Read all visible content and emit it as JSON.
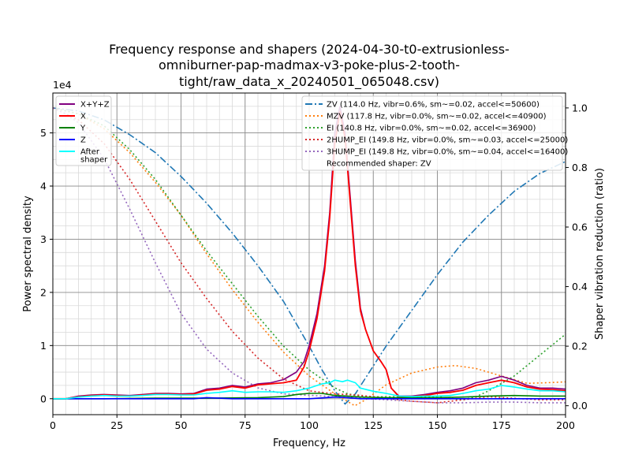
{
  "chart_data": {
    "type": "line",
    "title_lines": [
      "Frequency response and shapers (2024-04-30-t0-extrusionless-",
      "omniburner-pap-madmax-v3-poke-plus-2-tooth-",
      "tight/raw_data_x_20240501_065048.csv)"
    ],
    "xlabel": "Frequency, Hz",
    "ylabel": "Power spectral density",
    "y2label": "Shaper vibration reduction (ratio)",
    "y_offset_text": "1e4",
    "xlim": [
      0,
      200
    ],
    "ylim": [
      -0.3,
      5.75
    ],
    "y2lim": [
      -0.03,
      1.05
    ],
    "x_ticks": [
      0,
      25,
      50,
      75,
      100,
      125,
      150,
      175,
      200
    ],
    "y_ticks": [
      0,
      1,
      2,
      3,
      4,
      5
    ],
    "y2_ticks": [
      0.0,
      0.2,
      0.4,
      0.6,
      0.8,
      1.0
    ],
    "x_tick_labels": [
      "0",
      "25",
      "50",
      "75",
      "100",
      "125",
      "150",
      "175",
      "200"
    ],
    "y_tick_labels": [
      "0",
      "1",
      "2",
      "3",
      "4",
      "5"
    ],
    "y2_tick_labels": [
      "0.0",
      "0.2",
      "0.4",
      "0.6",
      "0.8",
      "1.0"
    ],
    "psd_series": [
      {
        "name": "X+Y+Z",
        "color": "#800080",
        "width": 1.6,
        "points": [
          [
            0,
            0
          ],
          [
            5,
            0
          ],
          [
            10,
            0.05
          ],
          [
            15,
            0.07
          ],
          [
            20,
            0.08
          ],
          [
            25,
            0.07
          ],
          [
            30,
            0.06
          ],
          [
            35,
            0.08
          ],
          [
            40,
            0.1
          ],
          [
            45,
            0.1
          ],
          [
            50,
            0.09
          ],
          [
            55,
            0.1
          ],
          [
            60,
            0.18
          ],
          [
            65,
            0.2
          ],
          [
            70,
            0.25
          ],
          [
            75,
            0.22
          ],
          [
            80,
            0.28
          ],
          [
            85,
            0.3
          ],
          [
            90,
            0.36
          ],
          [
            95,
            0.5
          ],
          [
            98,
            0.7
          ],
          [
            100,
            1.0
          ],
          [
            103,
            1.6
          ],
          [
            106,
            2.5
          ],
          [
            108,
            3.5
          ],
          [
            110,
            5.0
          ],
          [
            112,
            5.5
          ],
          [
            114,
            5.0
          ],
          [
            116,
            3.8
          ],
          [
            118,
            2.6
          ],
          [
            120,
            1.7
          ],
          [
            122,
            1.3
          ],
          [
            125,
            0.9
          ],
          [
            128,
            0.7
          ],
          [
            130,
            0.55
          ],
          [
            132,
            0.2
          ],
          [
            135,
            0.05
          ],
          [
            140,
            0.05
          ],
          [
            145,
            0.08
          ],
          [
            150,
            0.12
          ],
          [
            155,
            0.15
          ],
          [
            160,
            0.2
          ],
          [
            165,
            0.3
          ],
          [
            170,
            0.35
          ],
          [
            175,
            0.42
          ],
          [
            180,
            0.35
          ],
          [
            185,
            0.25
          ],
          [
            190,
            0.2
          ],
          [
            195,
            0.2
          ],
          [
            200,
            0.18
          ]
        ]
      },
      {
        "name": "X",
        "color": "#ff0000",
        "width": 1.8,
        "points": [
          [
            0,
            0
          ],
          [
            5,
            0
          ],
          [
            10,
            0.04
          ],
          [
            15,
            0.06
          ],
          [
            20,
            0.07
          ],
          [
            25,
            0.06
          ],
          [
            30,
            0.05
          ],
          [
            35,
            0.07
          ],
          [
            40,
            0.09
          ],
          [
            45,
            0.09
          ],
          [
            50,
            0.08
          ],
          [
            55,
            0.09
          ],
          [
            60,
            0.16
          ],
          [
            65,
            0.18
          ],
          [
            70,
            0.23
          ],
          [
            75,
            0.2
          ],
          [
            80,
            0.26
          ],
          [
            85,
            0.28
          ],
          [
            90,
            0.3
          ],
          [
            95,
            0.35
          ],
          [
            98,
            0.6
          ],
          [
            100,
            0.9
          ],
          [
            103,
            1.5
          ],
          [
            106,
            2.4
          ],
          [
            108,
            3.4
          ],
          [
            110,
            4.8
          ],
          [
            112,
            5.4
          ],
          [
            114,
            4.9
          ],
          [
            116,
            3.7
          ],
          [
            118,
            2.5
          ],
          [
            120,
            1.65
          ],
          [
            122,
            1.3
          ],
          [
            125,
            0.9
          ],
          [
            128,
            0.7
          ],
          [
            130,
            0.55
          ],
          [
            132,
            0.2
          ],
          [
            135,
            0.04
          ],
          [
            140,
            0.04
          ],
          [
            145,
            0.06
          ],
          [
            150,
            0.1
          ],
          [
            155,
            0.12
          ],
          [
            160,
            0.16
          ],
          [
            165,
            0.25
          ],
          [
            170,
            0.3
          ],
          [
            175,
            0.35
          ],
          [
            180,
            0.3
          ],
          [
            185,
            0.22
          ],
          [
            190,
            0.18
          ],
          [
            195,
            0.17
          ],
          [
            200,
            0.15
          ]
        ]
      },
      {
        "name": "Y",
        "color": "#008000",
        "width": 1.6,
        "points": [
          [
            0,
            0
          ],
          [
            20,
            0
          ],
          [
            40,
            0.01
          ],
          [
            60,
            0.01
          ],
          [
            80,
            0.02
          ],
          [
            90,
            0.04
          ],
          [
            95,
            0.08
          ],
          [
            100,
            0.1
          ],
          [
            105,
            0.1
          ],
          [
            110,
            0.06
          ],
          [
            115,
            0.05
          ],
          [
            120,
            0.03
          ],
          [
            130,
            0.02
          ],
          [
            140,
            0.02
          ],
          [
            150,
            0.02
          ],
          [
            160,
            0.03
          ],
          [
            170,
            0.05
          ],
          [
            180,
            0.06
          ],
          [
            190,
            0.05
          ],
          [
            200,
            0.05
          ]
        ]
      },
      {
        "name": "Z",
        "color": "#0000ff",
        "width": 1.6,
        "points": [
          [
            0,
            0
          ],
          [
            30,
            0
          ],
          [
            55,
            0
          ],
          [
            60,
            0.02
          ],
          [
            65,
            0.01
          ],
          [
            70,
            0.0
          ],
          [
            90,
            0.0
          ],
          [
            100,
            0.0
          ],
          [
            110,
            0.03
          ],
          [
            115,
            0.02
          ],
          [
            120,
            0.0
          ],
          [
            200,
            0.0
          ]
        ]
      },
      {
        "name": "After\nshaper",
        "color": "#00ffff",
        "width": 1.6,
        "points": [
          [
            0,
            0
          ],
          [
            5,
            0
          ],
          [
            10,
            0.03
          ],
          [
            15,
            0.05
          ],
          [
            20,
            0.06
          ],
          [
            25,
            0.05
          ],
          [
            30,
            0.05
          ],
          [
            35,
            0.06
          ],
          [
            40,
            0.08
          ],
          [
            45,
            0.08
          ],
          [
            50,
            0.07
          ],
          [
            55,
            0.07
          ],
          [
            60,
            0.1
          ],
          [
            65,
            0.12
          ],
          [
            70,
            0.15
          ],
          [
            75,
            0.12
          ],
          [
            80,
            0.13
          ],
          [
            85,
            0.13
          ],
          [
            90,
            0.12
          ],
          [
            95,
            0.15
          ],
          [
            100,
            0.2
          ],
          [
            105,
            0.28
          ],
          [
            108,
            0.3
          ],
          [
            110,
            0.35
          ],
          [
            113,
            0.32
          ],
          [
            115,
            0.35
          ],
          [
            118,
            0.3
          ],
          [
            120,
            0.2
          ],
          [
            125,
            0.14
          ],
          [
            130,
            0.1
          ],
          [
            135,
            0.05
          ],
          [
            140,
            0.04
          ],
          [
            145,
            0.05
          ],
          [
            150,
            0.05
          ],
          [
            155,
            0.06
          ],
          [
            160,
            0.1
          ],
          [
            165,
            0.15
          ],
          [
            170,
            0.18
          ],
          [
            175,
            0.25
          ],
          [
            180,
            0.22
          ],
          [
            185,
            0.18
          ],
          [
            190,
            0.15
          ],
          [
            195,
            0.15
          ],
          [
            200,
            0.13
          ]
        ]
      }
    ],
    "shaper_series": [
      {
        "name": "ZV (114.0 Hz, vibr=0.6%, sm~=0.02, accel<=50600)",
        "color": "#1f77b4",
        "dash": "9,3,2,3",
        "width": 1.6,
        "points": [
          [
            0,
            1.0
          ],
          [
            10,
            0.99
          ],
          [
            20,
            0.96
          ],
          [
            30,
            0.91
          ],
          [
            40,
            0.85
          ],
          [
            50,
            0.77
          ],
          [
            60,
            0.68
          ],
          [
            70,
            0.58
          ],
          [
            80,
            0.47
          ],
          [
            90,
            0.35
          ],
          [
            100,
            0.2
          ],
          [
            105,
            0.12
          ],
          [
            110,
            0.05
          ],
          [
            114,
            0.006
          ],
          [
            118,
            0.04
          ],
          [
            124,
            0.12
          ],
          [
            130,
            0.2
          ],
          [
            140,
            0.32
          ],
          [
            150,
            0.44
          ],
          [
            160,
            0.55
          ],
          [
            170,
            0.64
          ],
          [
            180,
            0.72
          ],
          [
            190,
            0.78
          ],
          [
            200,
            0.82
          ]
        ]
      },
      {
        "name": "MZV (117.8 Hz, vibr=0.0%, sm~=0.02, accel<=40900)",
        "color": "#ff7f0e",
        "dash": "2,3",
        "width": 1.6,
        "points": [
          [
            0,
            1.0
          ],
          [
            10,
            0.98
          ],
          [
            20,
            0.93
          ],
          [
            30,
            0.85
          ],
          [
            40,
            0.75
          ],
          [
            50,
            0.64
          ],
          [
            60,
            0.51
          ],
          [
            70,
            0.39
          ],
          [
            80,
            0.28
          ],
          [
            90,
            0.18
          ],
          [
            100,
            0.1
          ],
          [
            110,
            0.04
          ],
          [
            117.8,
            0.0
          ],
          [
            122,
            0.02
          ],
          [
            130,
            0.07
          ],
          [
            140,
            0.11
          ],
          [
            150,
            0.13
          ],
          [
            157,
            0.135
          ],
          [
            165,
            0.125
          ],
          [
            175,
            0.1
          ],
          [
            185,
            0.075
          ],
          [
            195,
            0.078
          ],
          [
            200,
            0.08
          ]
        ]
      },
      {
        "name": "EI (140.8 Hz, vibr=0.0%, sm~=0.02, accel<=36900)",
        "color": "#2ca02c",
        "dash": "2,3",
        "width": 1.6,
        "points": [
          [
            0,
            1.0
          ],
          [
            10,
            0.98
          ],
          [
            20,
            0.94
          ],
          [
            30,
            0.86
          ],
          [
            40,
            0.76
          ],
          [
            50,
            0.64
          ],
          [
            60,
            0.52
          ],
          [
            70,
            0.41
          ],
          [
            80,
            0.3
          ],
          [
            90,
            0.2
          ],
          [
            100,
            0.12
          ],
          [
            110,
            0.06
          ],
          [
            115,
            0.04
          ],
          [
            122,
            0.03
          ],
          [
            130,
            0.03
          ],
          [
            140,
            0.03
          ],
          [
            150,
            0.03
          ],
          [
            160,
            0.02
          ],
          [
            165,
            0.03
          ],
          [
            170,
            0.05
          ],
          [
            180,
            0.1
          ],
          [
            190,
            0.17
          ],
          [
            200,
            0.24
          ]
        ]
      },
      {
        "name": "2HUMP_EI (149.8 Hz, vibr=0.0%, sm~=0.03, accel<=25000)",
        "color": "#d62728",
        "dash": "2,3",
        "width": 1.6,
        "points": [
          [
            0,
            1.0
          ],
          [
            10,
            0.96
          ],
          [
            20,
            0.88
          ],
          [
            30,
            0.76
          ],
          [
            40,
            0.62
          ],
          [
            50,
            0.48
          ],
          [
            60,
            0.36
          ],
          [
            70,
            0.25
          ],
          [
            80,
            0.16
          ],
          [
            90,
            0.09
          ],
          [
            100,
            0.05
          ],
          [
            110,
            0.04
          ],
          [
            120,
            0.035
          ],
          [
            130,
            0.025
          ],
          [
            140,
            0.015
          ],
          [
            150,
            0.01
          ],
          [
            160,
            0.02
          ],
          [
            170,
            0.03
          ],
          [
            180,
            0.025
          ],
          [
            190,
            0.02
          ],
          [
            200,
            0.02
          ]
        ]
      },
      {
        "name": "3HUMP_EI (149.8 Hz, vibr=0.0%, sm~=0.04, accel<=16400)",
        "color": "#9467bd",
        "dash": "2,3",
        "width": 1.6,
        "points": [
          [
            0,
            1.0
          ],
          [
            5,
            0.98
          ],
          [
            10,
            0.95
          ],
          [
            20,
            0.83
          ],
          [
            30,
            0.66
          ],
          [
            40,
            0.48
          ],
          [
            50,
            0.31
          ],
          [
            60,
            0.19
          ],
          [
            70,
            0.11
          ],
          [
            80,
            0.06
          ],
          [
            90,
            0.04
          ],
          [
            100,
            0.035
          ],
          [
            110,
            0.03
          ],
          [
            120,
            0.025
          ],
          [
            130,
            0.02
          ],
          [
            140,
            0.015
          ],
          [
            150,
            0.01
          ],
          [
            160,
            0.01
          ],
          [
            170,
            0.012
          ],
          [
            180,
            0.012
          ],
          [
            190,
            0.01
          ],
          [
            200,
            0.01
          ]
        ]
      }
    ],
    "recommended_text": "Recommended shaper: ZV",
    "legend_left_position": "top-left",
    "legend_right_position": "top-right",
    "grid": true,
    "minor_grid": true
  }
}
